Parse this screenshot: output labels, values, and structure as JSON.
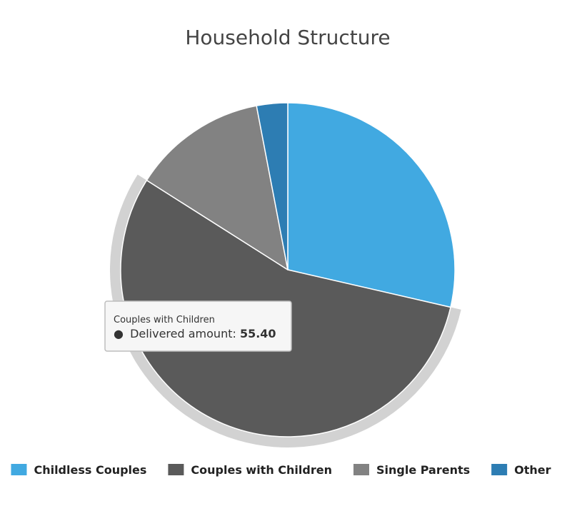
{
  "chart_data": {
    "type": "pie",
    "title": "Household Structure",
    "categories": [
      "Childless Couples",
      "Couples with Children",
      "Single Parents",
      "Other"
    ],
    "values": [
      28.6,
      55.4,
      13.0,
      3.0
    ],
    "colors": [
      "#41a9e1",
      "#5a5a5a",
      "#828282",
      "#2d7db3"
    ],
    "highlighted": "Couples with Children",
    "legend_position": "bottom"
  },
  "tooltip": {
    "series": "Couples with Children",
    "label": "Delivered amount: ",
    "value": "55.40",
    "bullet": "●"
  }
}
